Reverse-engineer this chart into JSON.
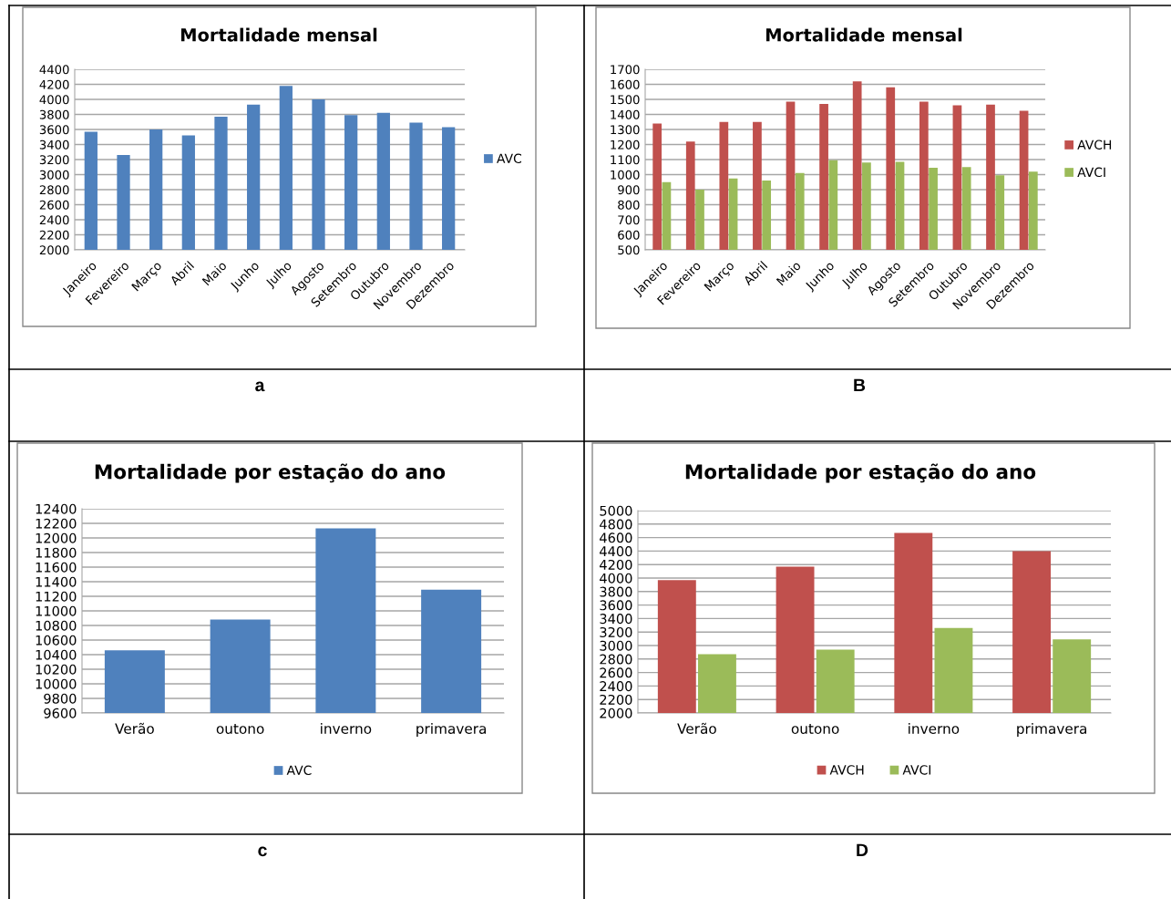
{
  "chart_data": [
    {
      "type": "bar",
      "title": "Mortalidade mensal",
      "categories": [
        "Janeiro",
        "Fevereiro",
        "Março",
        "Abril",
        "Maio",
        "Junho",
        "Julho",
        "Agosto",
        "Setembro",
        "Outubro",
        "Novembro",
        "Dezembro"
      ],
      "series": [
        {
          "name": "AVC",
          "color": "#4f81bd",
          "values": [
            3570,
            3260,
            3600,
            3520,
            3770,
            3930,
            4180,
            4000,
            3790,
            3820,
            3690,
            3630
          ]
        }
      ],
      "ylim": [
        2000,
        4400
      ],
      "yticks": [
        2000,
        2200,
        2400,
        2600,
        2800,
        3000,
        3200,
        3400,
        3600,
        3800,
        4000,
        4200,
        4400
      ],
      "grid": "y",
      "legend": "right",
      "annotations": [
        "a"
      ]
    },
    {
      "type": "bar",
      "title": "Mortalidade mensal",
      "categories": [
        "Janeiro",
        "Fevereiro",
        "Março",
        "Abril",
        "Maio",
        "Junho",
        "Julho",
        "Agosto",
        "Setembro",
        "Outubro",
        "Novembro",
        "Dezembro"
      ],
      "series": [
        {
          "name": "AVCH",
          "color": "#c0504d",
          "values": [
            1340,
            1220,
            1350,
            1350,
            1485,
            1470,
            1620,
            1580,
            1485,
            1460,
            1465,
            1425
          ]
        },
        {
          "name": "AVCI",
          "color": "#9bbb59",
          "values": [
            950,
            900,
            975,
            960,
            1010,
            1095,
            1080,
            1085,
            1045,
            1050,
            995,
            1020
          ]
        }
      ],
      "ylim": [
        500,
        1700
      ],
      "yticks": [
        500,
        600,
        700,
        800,
        900,
        1000,
        1100,
        1200,
        1300,
        1400,
        1500,
        1600,
        1700
      ],
      "grid": "y",
      "legend": "right",
      "annotations": [
        "B"
      ]
    },
    {
      "type": "bar",
      "title": "Mortalidade por estação do ano",
      "categories": [
        "Verão",
        "outono",
        "inverno",
        "primavera"
      ],
      "series": [
        {
          "name": "AVC",
          "color": "#4f81bd",
          "values": [
            10460,
            10880,
            12130,
            11290
          ]
        }
      ],
      "ylim": [
        9600,
        12400
      ],
      "yticks": [
        9600,
        9800,
        10000,
        10200,
        10400,
        10600,
        10800,
        11000,
        11200,
        11400,
        11600,
        11800,
        12000,
        12200,
        12400
      ],
      "grid": "y",
      "legend": "bottom",
      "annotations": [
        "c"
      ]
    },
    {
      "type": "bar",
      "title": "Mortalidade por estação do ano",
      "categories": [
        "Verão",
        "outono",
        "inverno",
        "primavera"
      ],
      "series": [
        {
          "name": "AVCH",
          "color": "#c0504d",
          "values": [
            3970,
            4170,
            4670,
            4400
          ]
        },
        {
          "name": "AVCI",
          "color": "#9bbb59",
          "values": [
            2870,
            2940,
            3260,
            3090
          ]
        }
      ],
      "ylim": [
        2000,
        5000
      ],
      "yticks": [
        2000,
        2200,
        2400,
        2600,
        2800,
        3000,
        3200,
        3400,
        3600,
        3800,
        4000,
        4200,
        4400,
        4600,
        4800,
        5000
      ],
      "grid": "y",
      "legend": "bottom",
      "annotations": [
        "D"
      ]
    }
  ]
}
